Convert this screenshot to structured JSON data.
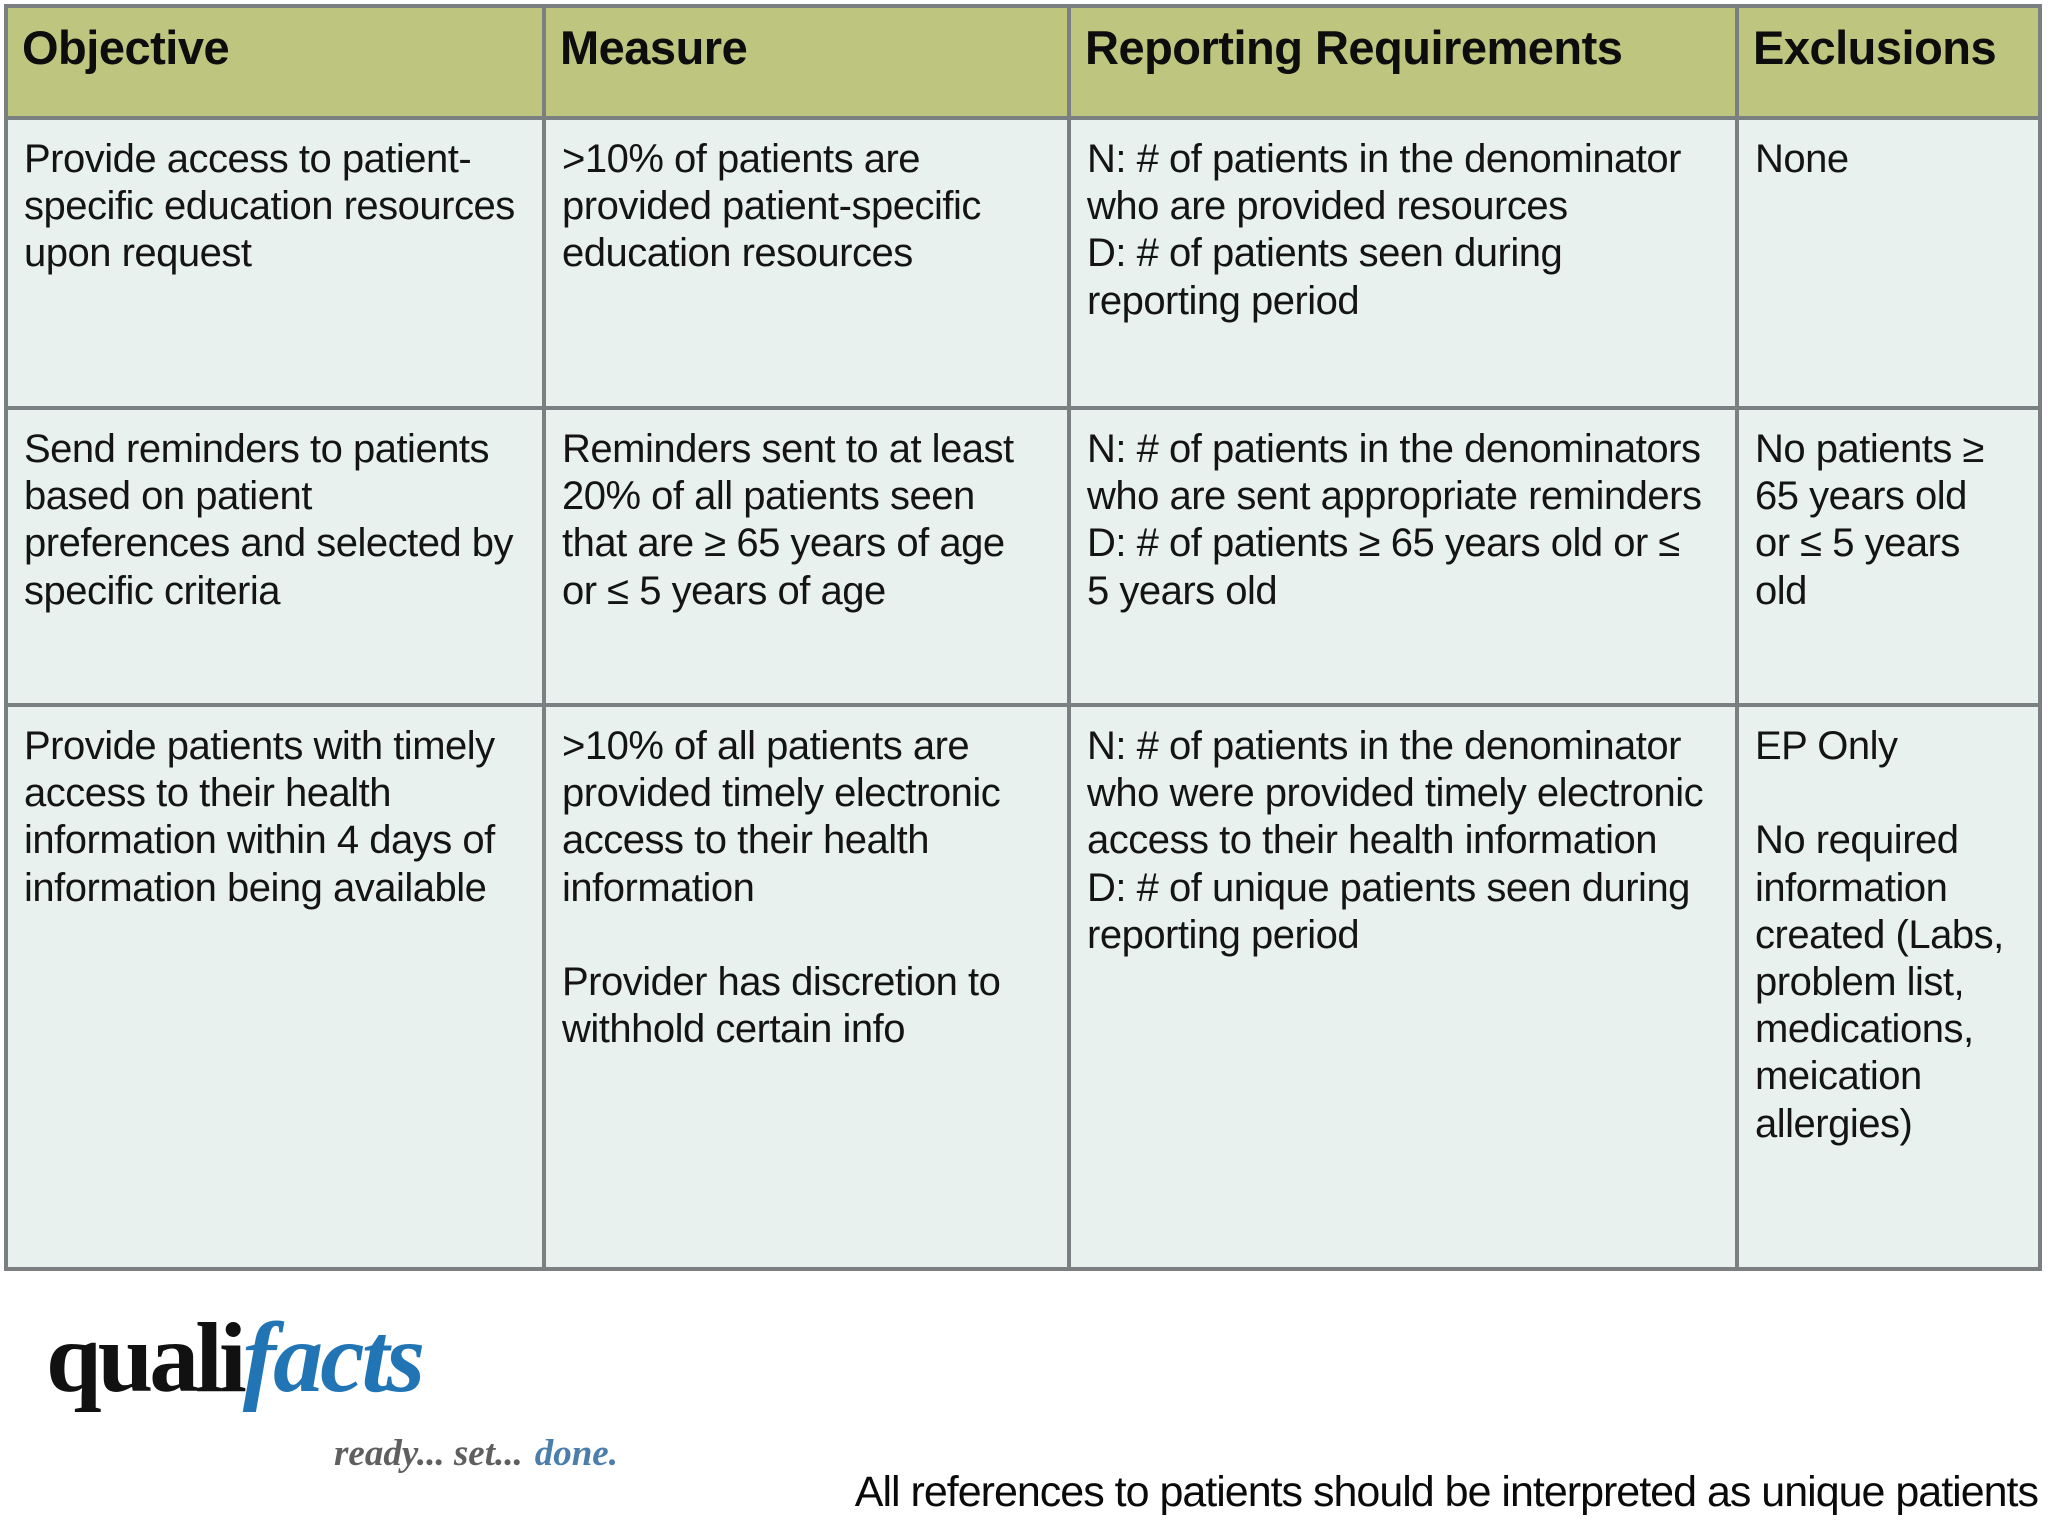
{
  "table": {
    "headers": [
      "Objective",
      "Measure",
      "Reporting Requirements",
      "Exclusions"
    ],
    "rows": [
      {
        "objective": "Provide access to patient-specific education resources upon request",
        "measure": ">10% of patients are provided patient-specific education resources",
        "reporting": "N: # of patients in the denominator who are provided resources\nD: # of patients seen during reporting period",
        "exclusions": "None"
      },
      {
        "objective": "Send reminders to patients based on patient preferences and selected by specific criteria",
        "measure": "Reminders sent to at least 20% of all patients seen that are ≥ 65 years of age or ≤ 5 years of age",
        "reporting": "N: # of patients in the denominators who are sent appropriate reminders\nD: # of patients ≥ 65 years old or ≤ 5 years old",
        "exclusions": "No patients ≥ 65 years old or ≤ 5 years old"
      },
      {
        "objective": "Provide patients with timely access to their health information within 4 days of information being available",
        "measure": ">10% of all patients are provided timely electronic access to their health information\n\nProvider has discretion to withhold certain info",
        "reporting": "N: # of patients in the denominator who were provided timely electronic access to their health information\nD: # of unique patients seen during reporting period",
        "exclusions": "EP Only\n\nNo required information created (Labs, problem list, medications, meication allergies)"
      }
    ]
  },
  "logo": {
    "part1": "quali",
    "part2": "facts",
    "tagline_gray": "ready... set...",
    "tagline_blue": "done."
  },
  "footer": {
    "note": "All references to patients should be interpreted as unique patients"
  },
  "colors": {
    "header_bg": "#bec57e",
    "cell_bg": "#e8f1ee",
    "border": "#7a7f81",
    "logo_blue": "#2175b5",
    "tagline_gray": "#5f5f5f",
    "tagline_blue": "#4b7dad"
  }
}
